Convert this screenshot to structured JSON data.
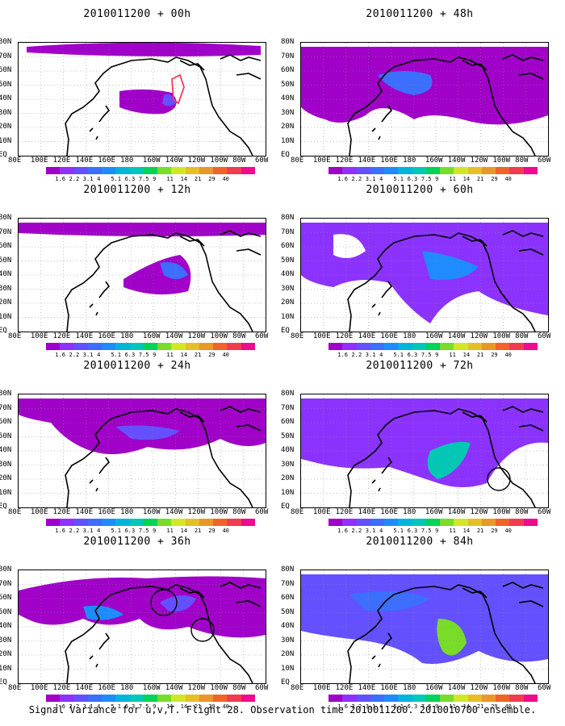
{
  "panels": [
    {
      "title": "2010011200 + 00h"
    },
    {
      "title": "2010011200 + 48h"
    },
    {
      "title": "2010011200 + 12h"
    },
    {
      "title": "2010011200 + 60h"
    },
    {
      "title": "2010011200 + 24h"
    },
    {
      "title": "2010011200 + 72h"
    },
    {
      "title": "2010011200 + 36h"
    },
    {
      "title": "2010011200 + 84h"
    }
  ],
  "lat_labels": [
    "80N",
    "70N",
    "60N",
    "50N",
    "40N",
    "30N",
    "20N",
    "10N",
    "EQ"
  ],
  "lon_labels": [
    "80E",
    "100E",
    "120E",
    "140E",
    "160E",
    "180",
    "160W",
    "140W",
    "120W",
    "100W",
    "80W",
    "60W"
  ],
  "colorbar": {
    "labels": [
      "1.6",
      "2.2",
      "3.1",
      "4",
      "5.1",
      "6.3",
      "7.5",
      "9",
      "11",
      "14",
      "21",
      "29",
      "40"
    ],
    "colors": [
      "#a000c8",
      "#8c32ff",
      "#6450ff",
      "#3c6eff",
      "#1e8cff",
      "#00b4dc",
      "#00c8b4",
      "#00d25a",
      "#78dc28",
      "#d2e628",
      "#e6be28",
      "#eb9628",
      "#f06428",
      "#f03c50",
      "#f00a8c"
    ]
  },
  "caption": "Signal Variance for u,v,T. Flight 28. Observation time 2010011200. 2010010700 ensemble."
}
